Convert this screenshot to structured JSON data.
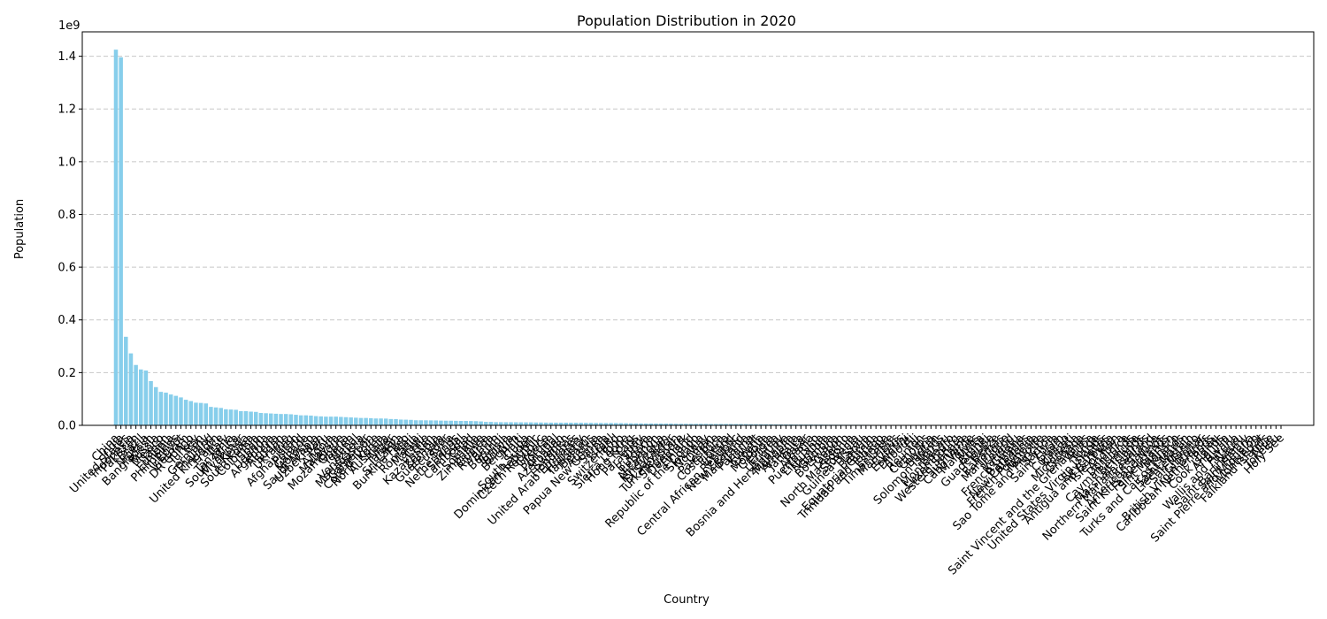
{
  "chart_data": {
    "type": "bar",
    "title": "Population Distribution in 2020",
    "xlabel": "Country",
    "ylabel": "Population",
    "offset_text": "1e9",
    "ylim": [
      0,
      1492600000.0
    ],
    "yticks": [
      0,
      200000000,
      400000000,
      600000000,
      800000000,
      1000000000,
      1200000000,
      1400000000
    ],
    "ytick_labels": [
      "0.0",
      "0.2",
      "0.4",
      "0.6",
      "0.8",
      "1.0",
      "1.2",
      "1.4"
    ],
    "grid": "y, dashed",
    "bar_color": "#87ceeb",
    "categories": [
      "China",
      "India",
      "United States",
      "Indonesia",
      "Pakistan",
      "Brazil",
      "Nigeria",
      "Bangladesh",
      "Russia",
      "Mexico",
      "Japan",
      "Ethiopia",
      "Philippines",
      "Egypt",
      "Vietnam",
      "DR Congo",
      "Turkey",
      "Iran",
      "Germany",
      "Thailand",
      "United Kingdom",
      "France",
      "Italy",
      "Tanzania",
      "South Africa",
      "Myanmar",
      "Kenya",
      "South Korea",
      "Colombia",
      "Spain",
      "Uganda",
      "Argentina",
      "Algeria",
      "Sudan",
      "Ukraine",
      "Iraq",
      "Afghanistan",
      "Poland",
      "Canada",
      "Morocco",
      "Saudi Arabia",
      "Uzbekistan",
      "Peru",
      "Angola",
      "Malaysia",
      "Mozambique",
      "Ghana",
      "Yemen",
      "Nepal",
      "Venezuela",
      "Madagascar",
      "Cameroon",
      "Cote d'Ivoire",
      "North Korea",
      "Australia",
      "Niger",
      "Taiwan",
      "Sri Lanka",
      "Burkina Faso",
      "Mali",
      "Romania",
      "Malawi",
      "Chile",
      "Kazakhstan",
      "Zambia",
      "Guatemala",
      "Ecuador",
      "Syria",
      "Netherlands",
      "Senegal",
      "Cambodia",
      "Chad",
      "Somalia",
      "Zimbabwe",
      "Guinea",
      "Rwanda",
      "Benin",
      "Burundi",
      "Tunisia",
      "Bolivia",
      "Belgium",
      "Haiti",
      "Cuba",
      "South Sudan",
      "Dominican Republic",
      "Czech Republic",
      "Greece",
      "Jordan",
      "Portugal",
      "Azerbaijan",
      "Sweden",
      "Honduras",
      "United Arab Emirates",
      "Hungary",
      "Tajikistan",
      "Belarus",
      "Austria",
      "Papua New Guinea",
      "Serbia",
      "Israel",
      "Switzerland",
      "Togo",
      "Sierra Leone",
      "Hong Kong",
      "Laos",
      "Paraguay",
      "Libya",
      "Bulgaria",
      "Lebanon",
      "Nicaragua",
      "Kyrgyzstan",
      "El Salvador",
      "Turkmenistan",
      "Singapore",
      "Denmark",
      "Finland",
      "Republic of the Congo",
      "Slovakia",
      "Norway",
      "Oman",
      "Palestine",
      "Costa Rica",
      "Liberia",
      "Ireland",
      "Central African Republic",
      "New Zealand",
      "Mauritania",
      "Panama",
      "Kuwait",
      "Croatia",
      "Moldova",
      "Georgia",
      "Eritrea",
      "Uruguay",
      "Bosnia and Herzegovina",
      "Mongolia",
      "Armenia",
      "Jamaica",
      "Qatar",
      "Albania",
      "Puerto Rico",
      "Lithuania",
      "Namibia",
      "Gambia",
      "Botswana",
      "Gabon",
      "Lesotho",
      "North Macedonia",
      "Slovenia",
      "Guinea-Bissau",
      "Latvia",
      "Bahrain",
      "Equatorial Guinea",
      "Trinidad and Tobago",
      "Estonia",
      "Timor-Leste",
      "Mauritius",
      "Cyprus",
      "Eswatini",
      "Djibouti",
      "Fiji",
      "Reunion",
      "Comoros",
      "Guyana",
      "Bhutan",
      "Solomon Islands",
      "Macau",
      "Montenegro",
      "Luxembourg",
      "Western Sahara",
      "Suriname",
      "Cabo Verde",
      "Maldives",
      "Malta",
      "Brunei",
      "Guadeloupe",
      "Belize",
      "Bahamas",
      "Martinique",
      "Iceland",
      "Vanuatu",
      "French Guiana",
      "Barbados",
      "New Caledonia",
      "French Polynesia",
      "Mayotte",
      "Sao Tome and Principe",
      "Samoa",
      "Saint Lucia",
      "Guam",
      "Curacao",
      "Kiribati",
      "Micronesia",
      "Grenada",
      "Saint Vincent and the Grenadines",
      "Aruba",
      "Tonga",
      "United States Virgin Islands",
      "Seychelles",
      "Antigua and Barbuda",
      "Isle of Man",
      "Andorra",
      "Dominica",
      "Cayman Islands",
      "Bermuda",
      "Marshall Islands",
      "Northern Mariana Islands",
      "Greenland",
      "American Samoa",
      "Saint Kitts and Nevis",
      "Faroe Islands",
      "Sint Maarten",
      "Monaco",
      "Turks and Caicos Islands",
      "Saint Martin",
      "Liechtenstein",
      "San Marino",
      "Gibraltar",
      "British Virgin Islands",
      "Caribbean Netherlands",
      "Palau",
      "Cook Islands",
      "Anguilla",
      "Tuvalu",
      "Wallis and Futuna",
      "Nauru",
      "Saint Barthelemy",
      "Saint Helena",
      "Saint Pierre and Miquelon",
      "Montserrat",
      "Falkland Islands",
      "Niue",
      "Tokelau",
      "Holy See"
    ],
    "values": [
      1425000000,
      1396000000,
      336000000,
      273000000,
      229000000,
      212000000,
      208000000,
      168000000,
      145000000,
      127000000,
      124000000,
      117000000,
      112000000,
      106000000,
      97000000,
      92000000,
      86000000,
      85000000,
      83000000,
      70000000,
      68000000,
      66000000,
      61000000,
      60000000,
      59000000,
      54000000,
      54000000,
      52000000,
      51000000,
      47000000,
      46000000,
      45000000,
      44000000,
      43000000,
      43000000,
      42000000,
      40000000,
      38000000,
      38000000,
      37000000,
      35000000,
      34000000,
      33000000,
      33000000,
      33000000,
      32000000,
      31000000,
      30000000,
      29000000,
      28000000,
      28000000,
      27000000,
      26000000,
      26000000,
      25600000,
      24000000,
      23800000,
      21900000,
      21500000,
      20800000,
      19300000,
      19200000,
      19100000,
      18800000,
      18600000,
      17900000,
      17600000,
      17500000,
      17100000,
      16700000,
      16700000,
      16400000,
      15900000,
      14900000,
      13100000,
      13000000,
      12100000,
      11900000,
      11800000,
      11700000,
      11600000,
      11400000,
      11300000,
      11200000,
      10800000,
      10700000,
      10400000,
      10200000,
      10200000,
      10100000,
      10100000,
      9900000,
      9900000,
      9700000,
      9500000,
      9400000,
      9000000,
      8900000,
      8700000,
      8700000,
      8600000,
      8300000,
      8000000,
      7500000,
      7300000,
      7100000,
      6900000,
      6900000,
      6800000,
      6600000,
      6500000,
      6500000,
      6000000,
      5700000,
      5800000,
      5500000,
      5500000,
      5500000,
      5400000,
      5100000,
      5100000,
      5100000,
      5100000,
      4900000,
      4800000,
      4800000,
      4600000,
      4300000,
      4300000,
      4100000,
      4000000,
      4000000,
      3500000,
      3500000,
      3300000,
      3300000,
      3000000,
      3000000,
      2900000,
      2900000,
      2800000,
      2700000,
      2500000,
      2400000,
      2350000,
      2200000,
      2100000,
      2080000,
      2080000,
      1970000,
      1890000,
      1700000,
      1400000,
      1400000,
      1330000,
      1320000,
      1270000,
      1210000,
      1160000,
      988000,
      896000,
      895000,
      870000,
      786000,
      772000,
      687000,
      649000,
      628000,
      626000,
      597000,
      587000,
      556000,
      541000,
      514000,
      437000,
      400000,
      398000,
      393000,
      375000,
      341000,
      307000,
      299000,
      287000,
      285000,
      281000,
      273000,
      219000,
      198000,
      184000,
      168000,
      164000,
      119000,
      115000,
      113000,
      111000,
      107000,
      106000,
      104000,
      98000,
      98000,
      85000,
      77000,
      72000,
      66000,
      62000,
      59000,
      57000,
      57000,
      55000,
      53000,
      49000,
      43000,
      39000,
      39000,
      38700,
      38100,
      33900,
      33700,
      30200,
      26200,
      18100,
      17500,
      15000,
      11800,
      11200,
      10800,
      9900,
      6100,
      5800,
      5000,
      3500,
      1600,
      1400,
      800
    ]
  }
}
